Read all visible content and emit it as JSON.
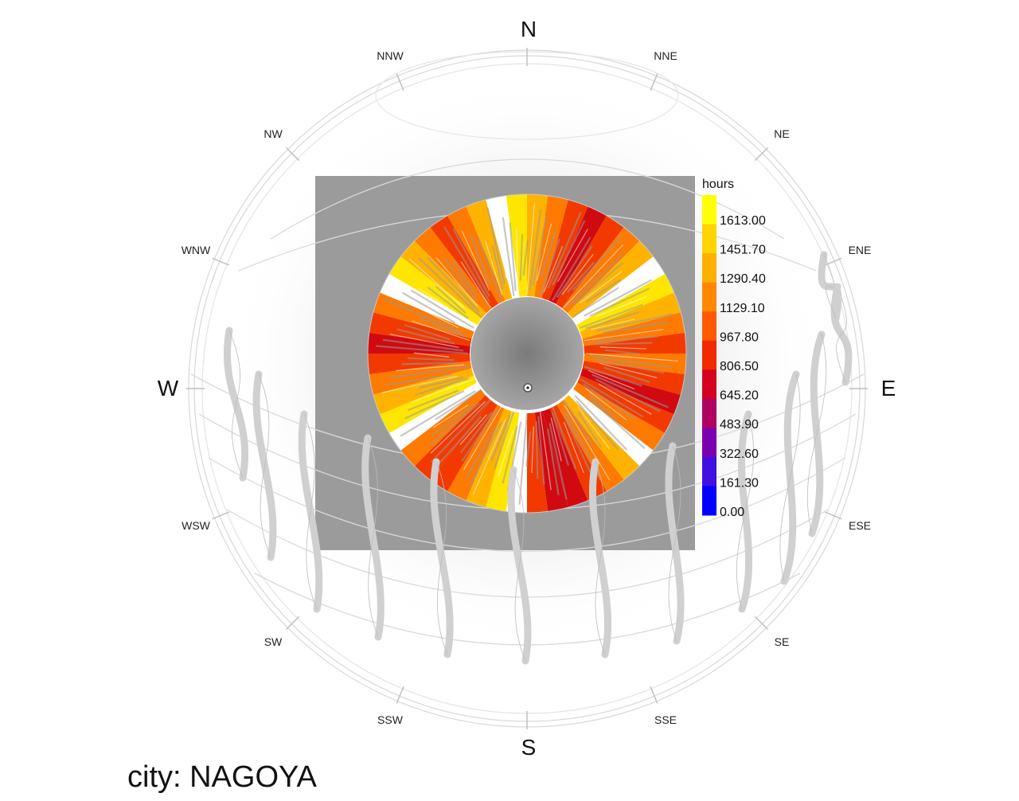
{
  "compass": {
    "N": "N",
    "S": "S",
    "E": "E",
    "W": "W",
    "NNE": "NNE",
    "NE": "NE",
    "ENE": "ENE",
    "ESE": "ESE",
    "SE": "SE",
    "SSE": "SSE",
    "SSW": "SSW",
    "SW": "SW",
    "WSW": "WSW",
    "WNW": "WNW",
    "NW": "NW",
    "NNW": "NNW"
  },
  "legend": {
    "title": "hours",
    "labels": [
      "1613.00",
      "1451.70",
      "1290.40",
      "1129.10",
      "967.80",
      "806.50",
      "645.20",
      "483.90",
      "322.60",
      "161.30",
      "0.00"
    ],
    "colors": [
      "#ffff00",
      "#ffd400",
      "#ffb000",
      "#ff8800",
      "#ff5a00",
      "#f22a00",
      "#d40020",
      "#b00060",
      "#7a00b0",
      "#4010e0",
      "#0000ff"
    ]
  },
  "city": "city: NAGOYA"
}
